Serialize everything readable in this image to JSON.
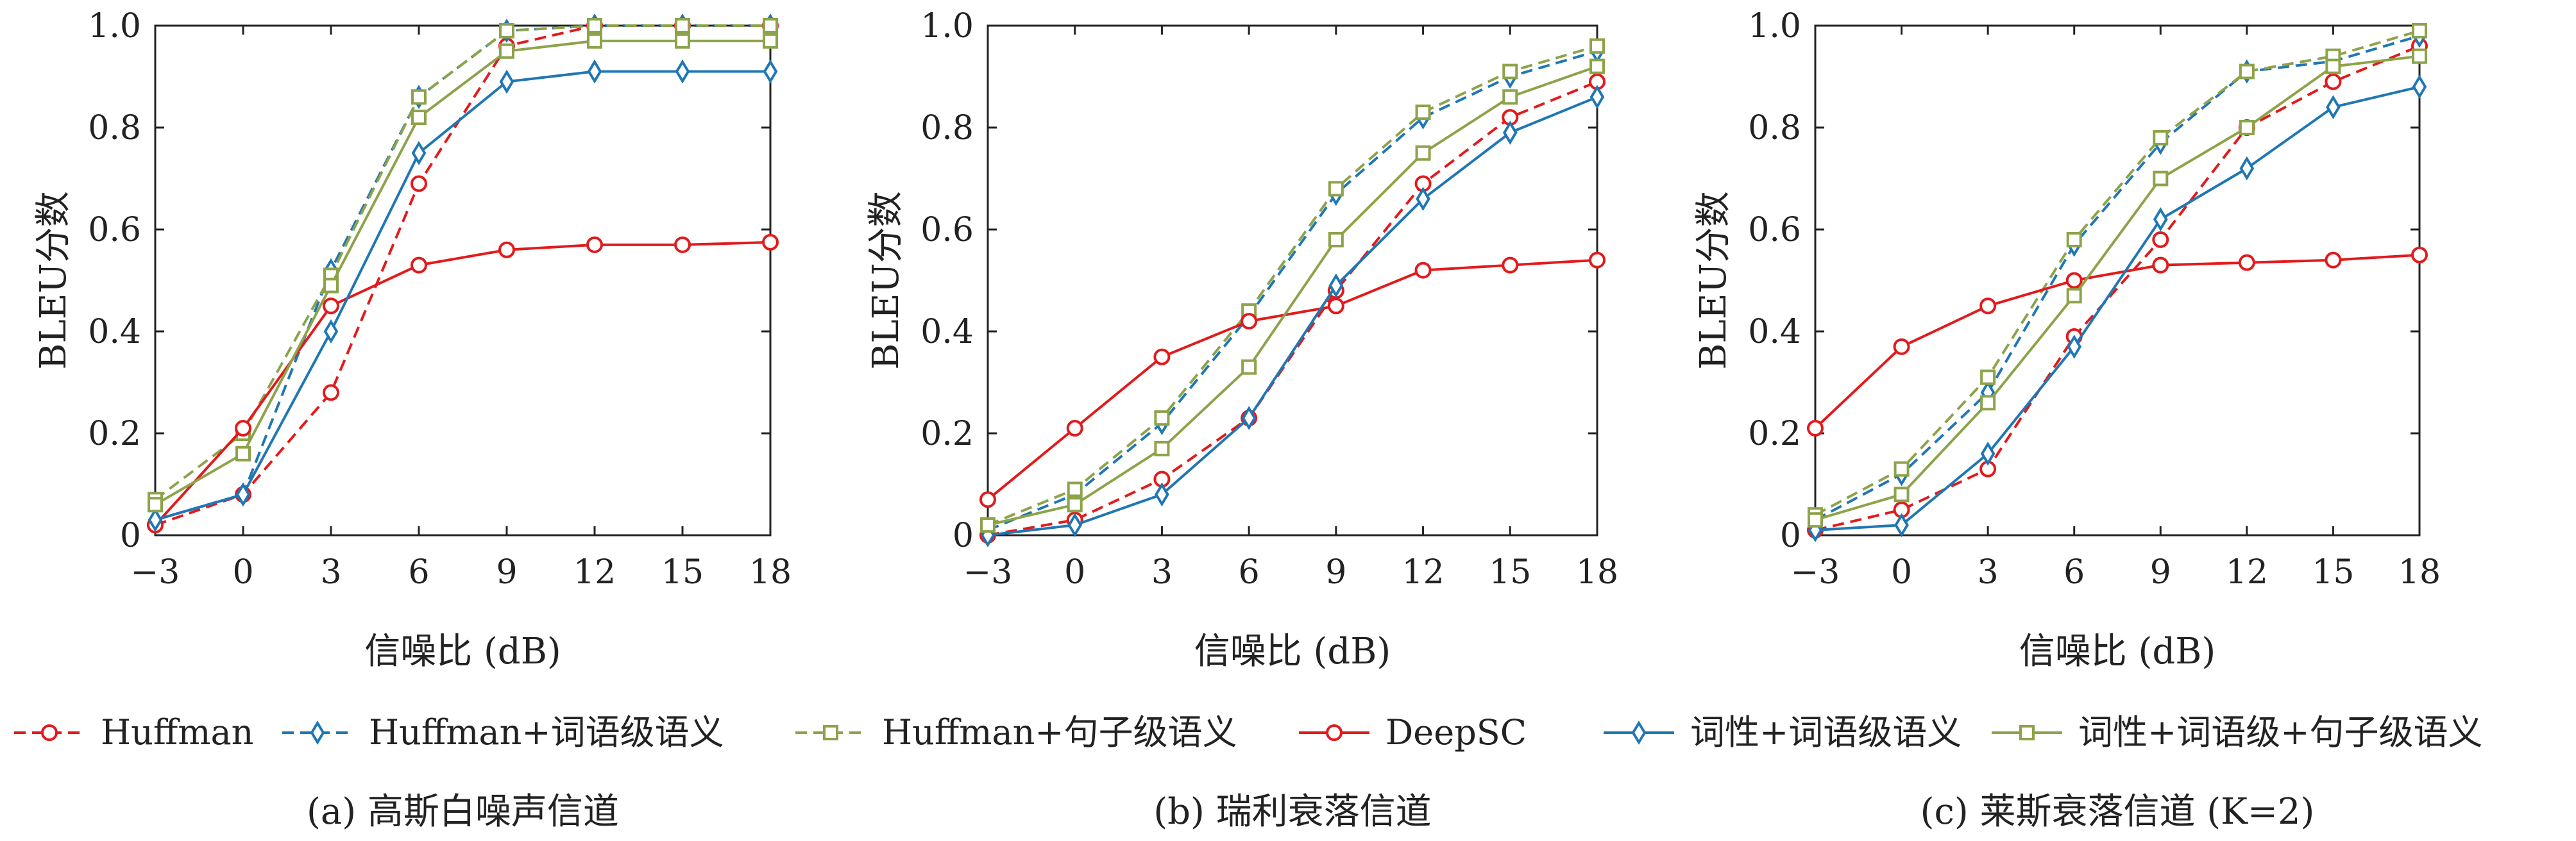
{
  "chart_data": [
    {
      "type": "line",
      "caption": "(a) 高斯白噪声信道",
      "xlabel": "信噪比 (dB)",
      "ylabel": "BLEU分数",
      "x": [
        -3,
        0,
        3,
        6,
        9,
        12,
        15,
        18
      ],
      "xlim": [
        -3,
        18
      ],
      "ylim": [
        0,
        1.0
      ],
      "xticks": [
        "-3",
        "0",
        "3",
        "6",
        "9",
        "12",
        "15",
        "18"
      ],
      "yticks": [
        "0",
        "0.2",
        "0.4",
        "0.6",
        "0.8",
        "1.0"
      ],
      "series": [
        {
          "name": "Huffman",
          "values": [
            0.02,
            0.08,
            0.28,
            0.69,
            0.96,
            1.0,
            1.0,
            1.0
          ]
        },
        {
          "name": "Huffman+词语级语义",
          "values": [
            0.03,
            0.08,
            0.52,
            0.86,
            0.99,
            1.0,
            1.0,
            1.0
          ]
        },
        {
          "name": "Huffman+句子级语义",
          "values": [
            0.07,
            0.2,
            0.51,
            0.86,
            0.99,
            1.0,
            1.0,
            1.0
          ]
        },
        {
          "name": "DeepSC",
          "values": [
            0.02,
            0.21,
            0.45,
            0.53,
            0.56,
            0.57,
            0.57,
            0.575
          ]
        },
        {
          "name": "词性+词语级语义",
          "values": [
            0.03,
            0.08,
            0.4,
            0.75,
            0.89,
            0.91,
            0.91,
            0.91
          ]
        },
        {
          "name": "词性+词语级+句子级语义",
          "values": [
            0.06,
            0.16,
            0.49,
            0.82,
            0.95,
            0.97,
            0.97,
            0.97
          ]
        }
      ]
    },
    {
      "type": "line",
      "caption": "(b) 瑞利衰落信道",
      "xlabel": "信噪比 (dB)",
      "ylabel": "BLEU分数",
      "x": [
        -3,
        0,
        3,
        6,
        9,
        12,
        15,
        18
      ],
      "xlim": [
        -3,
        18
      ],
      "ylim": [
        0,
        1.0
      ],
      "xticks": [
        "-3",
        "0",
        "3",
        "6",
        "9",
        "12",
        "15",
        "18"
      ],
      "yticks": [
        "0",
        "0.2",
        "0.4",
        "0.6",
        "0.8",
        "1.0"
      ],
      "series": [
        {
          "name": "Huffman",
          "values": [
            0.0,
            0.03,
            0.11,
            0.23,
            0.48,
            0.69,
            0.82,
            0.89
          ]
        },
        {
          "name": "Huffman+词语级语义",
          "values": [
            0.01,
            0.08,
            0.22,
            0.43,
            0.67,
            0.82,
            0.9,
            0.95
          ]
        },
        {
          "name": "Huffman+句子级语义",
          "values": [
            0.02,
            0.09,
            0.23,
            0.44,
            0.68,
            0.83,
            0.91,
            0.96
          ]
        },
        {
          "name": "DeepSC",
          "values": [
            0.07,
            0.21,
            0.35,
            0.42,
            0.45,
            0.52,
            0.53,
            0.54
          ]
        },
        {
          "name": "词性+词语级语义",
          "values": [
            0.0,
            0.02,
            0.08,
            0.23,
            0.49,
            0.66,
            0.79,
            0.86
          ]
        },
        {
          "name": "词性+词语级+句子级语义",
          "values": [
            0.02,
            0.06,
            0.17,
            0.33,
            0.58,
            0.75,
            0.86,
            0.92
          ]
        }
      ]
    },
    {
      "type": "line",
      "caption": "(c) 莱斯衰落信道 (K=2)",
      "xlabel": "信噪比 (dB)",
      "ylabel": "BLEU分数",
      "x": [
        -3,
        0,
        3,
        6,
        9,
        12,
        15,
        18
      ],
      "xlim": [
        -3,
        18
      ],
      "ylim": [
        0,
        1.0
      ],
      "xticks": [
        "-3",
        "0",
        "3",
        "6",
        "9",
        "12",
        "15",
        "18"
      ],
      "yticks": [
        "0",
        "0.2",
        "0.4",
        "0.6",
        "0.8",
        "1.0"
      ],
      "series": [
        {
          "name": "Huffman",
          "values": [
            0.01,
            0.05,
            0.13,
            0.39,
            0.58,
            0.8,
            0.89,
            0.96
          ]
        },
        {
          "name": "Huffman+词语级语义",
          "values": [
            0.03,
            0.12,
            0.28,
            0.57,
            0.77,
            0.91,
            0.93,
            0.98
          ]
        },
        {
          "name": "Huffman+句子级语义",
          "values": [
            0.04,
            0.13,
            0.31,
            0.58,
            0.78,
            0.91,
            0.94,
            0.99
          ]
        },
        {
          "name": "DeepSC",
          "values": [
            0.21,
            0.37,
            0.45,
            0.5,
            0.53,
            0.535,
            0.54,
            0.55
          ]
        },
        {
          "name": "词性+词语级语义",
          "values": [
            0.01,
            0.02,
            0.16,
            0.37,
            0.62,
            0.72,
            0.84,
            0.88
          ]
        },
        {
          "name": "词性+词语级+句子级语义",
          "values": [
            0.03,
            0.08,
            0.26,
            0.47,
            0.7,
            0.8,
            0.92,
            0.94
          ]
        }
      ]
    }
  ],
  "legend": [
    {
      "name": "Huffman",
      "color": "#e31a1c",
      "dash": true,
      "marker": "circle"
    },
    {
      "name": "Huffman+词语级语义",
      "color": "#1f77b4",
      "dash": true,
      "marker": "diamond"
    },
    {
      "name": "Huffman+句子级语义",
      "color": "#8da34a",
      "dash": true,
      "marker": "square"
    },
    {
      "name": "DeepSC",
      "color": "#e31a1c",
      "dash": false,
      "marker": "circle"
    },
    {
      "name": "词性+词语级语义",
      "color": "#1f77b4",
      "dash": false,
      "marker": "diamond"
    },
    {
      "name": "词性+词语级+句子级语义",
      "color": "#8da34a",
      "dash": false,
      "marker": "square"
    }
  ],
  "legend_placement": "bottom",
  "series_styles": [
    {
      "color": "#e31a1c",
      "dash": true,
      "marker": "circle",
      "marker_color": "#e31a1c"
    },
    {
      "color": "#1f77b4",
      "dash": true,
      "marker": "diamond",
      "marker_color": "#1f77b4"
    },
    {
      "color": "#8da34a",
      "dash": true,
      "marker": "square",
      "marker_color": "#8da34a"
    },
    {
      "color": "#e31a1c",
      "dash": false,
      "marker": "circle",
      "marker_color": "#e31a1c"
    },
    {
      "color": "#1f77b4",
      "dash": false,
      "marker": "diamond",
      "marker_color": "#1f77b4"
    },
    {
      "color": "#8da34a",
      "dash": false,
      "marker": "square",
      "marker_color": "#8da34a"
    }
  ]
}
